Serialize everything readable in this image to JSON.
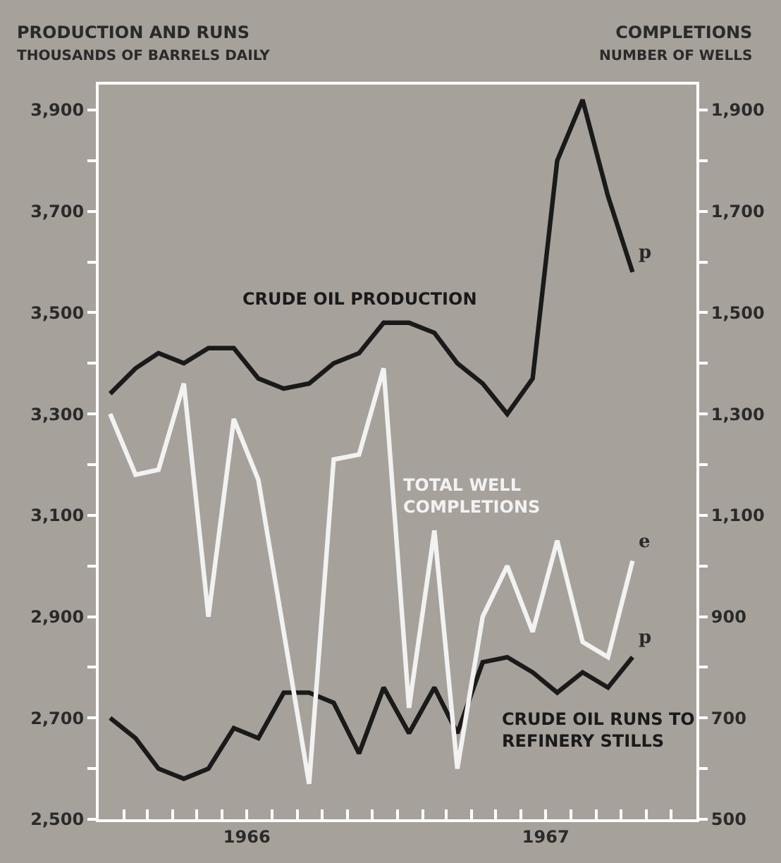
{
  "chart_data": {
    "type": "line",
    "ylabel": "PRODUCTION AND RUNS\nTHOUSANDS OF BARRELS DAILY",
    "y2label": "COMPLETIONS\nNUMBER OF WELLS",
    "x": [
      "1966-01-15",
      "1966-02-15",
      "1966-03-15",
      "1966-04-15",
      "1966-05-15",
      "1966-06-15",
      "1966-07-15",
      "1966-08-15",
      "1966-09-15",
      "1966-10-15",
      "1966-11-15",
      "1966-12-15",
      "1967-01-15",
      "1967-02-15",
      "1967-03-15",
      "1967-04-15",
      "1967-05-15",
      "1967-06-15",
      "1967-07-15",
      "1967-08-15",
      "1967-09-15",
      "1967-10-15"
    ],
    "series": [
      {
        "name": "CRUDE OIL PRODUCTION",
        "color": "#1a1a1a",
        "values": [
          3340,
          3390,
          3420,
          3400,
          3430,
          3430,
          3370,
          3350,
          3360,
          3400,
          3420,
          3480,
          3480,
          3460,
          3400,
          3360,
          3300,
          3370,
          3800,
          3920,
          3730,
          3580
        ]
      },
      {
        "name": "TOTAL WELL COMPLETIONS",
        "color": "#f2f2f2",
        "axis": "y2",
        "values": [
          1300,
          1180,
          1190,
          1360,
          900,
          1290,
          1170,
          870,
          570,
          1210,
          1220,
          1390,
          720,
          1070,
          600,
          900,
          1000,
          870,
          1050,
          850,
          820,
          1010
        ]
      },
      {
        "name": "CRUDE OIL RUNS TO REFINERY STILLS",
        "color": "#1a1a1a",
        "values": [
          2700,
          2660,
          2600,
          2580,
          2600,
          2680,
          2660,
          2750,
          2750,
          2730,
          2630,
          2760,
          2670,
          2760,
          2670,
          2810,
          2820,
          2790,
          2750,
          2790,
          2760,
          2820
        ]
      }
    ],
    "annotations": [
      {
        "text": "p",
        "x": "1967-10-15",
        "y": 3580
      },
      {
        "text": "e",
        "x": "1967-10-15",
        "y": 3010
      },
      {
        "text": "p",
        "x": "1967-10-15",
        "y": 2820
      }
    ],
    "xlim": [
      "1966-01-01",
      "1968-01-01"
    ],
    "xticks": [
      {
        "value": "1966-02-01",
        "label": null
      },
      {
        "value": "1966-03-01",
        "label": null
      },
      {
        "value": "1966-04-01",
        "label": null
      },
      {
        "value": "1966-05-01",
        "label": null
      },
      {
        "value": "1966-06-01",
        "label": null
      },
      {
        "value": "1966-07-01",
        "label": "1966"
      },
      {
        "value": "1966-08-01",
        "label": null
      },
      {
        "value": "1966-09-01",
        "label": null
      },
      {
        "value": "1966-10-01",
        "label": null
      },
      {
        "value": "1966-11-01",
        "label": null
      },
      {
        "value": "1966-12-01",
        "label": null
      },
      {
        "value": "1967-01-01",
        "label": null
      },
      {
        "value": "1967-02-01",
        "label": null
      },
      {
        "value": "1967-03-01",
        "label": null
      },
      {
        "value": "1967-04-01",
        "label": null
      },
      {
        "value": "1967-05-01",
        "label": null
      },
      {
        "value": "1967-06-01",
        "label": null
      },
      {
        "value": "1967-07-01",
        "label": "1967"
      },
      {
        "value": "1967-08-01",
        "label": null
      },
      {
        "value": "1967-09-01",
        "label": null
      },
      {
        "value": "1967-10-01",
        "label": null
      },
      {
        "value": "1967-11-01",
        "label": null
      },
      {
        "value": "1967-12-01",
        "label": null
      }
    ],
    "ylim": [
      2500,
      3950
    ],
    "yticks": [
      "2,500",
      {
        "value": 2600,
        "label": null
      },
      {
        "value": 2700,
        "label": "2,700"
      },
      {
        "value": 2800,
        "label": null
      },
      {
        "value": 2900,
        "label": "2,900"
      },
      {
        "value": 3000,
        "label": null
      },
      {
        "value": 3100,
        "label": "3,100"
      },
      {
        "value": 3200,
        "label": null
      },
      {
        "value": 3300,
        "label": "3,300"
      },
      {
        "value": 3400,
        "label": null
      },
      {
        "value": 3500,
        "label": "3,500"
      },
      {
        "value": 3600,
        "label": null
      },
      {
        "value": 3700,
        "label": "3,700"
      },
      {
        "value": 3800,
        "label": null
      },
      {
        "value": 3900,
        "label": "3,900"
      }
    ],
    "y2lim": [
      500,
      1950
    ],
    "y2ticks": [
      {
        "value": 500,
        "label": "500"
      },
      {
        "value": 600,
        "label": null
      },
      {
        "value": 700,
        "label": "700"
      },
      {
        "value": 800,
        "label": null
      },
      {
        "value": 900,
        "label": "900"
      },
      {
        "value": 1000,
        "label": null
      },
      {
        "value": 1100,
        "label": "1,100"
      },
      {
        "value": 1200,
        "label": null
      },
      {
        "value": 1300,
        "label": "1,300"
      },
      {
        "value": 1400,
        "label": null
      },
      {
        "value": 1500,
        "label": "1,500"
      },
      {
        "value": 1600,
        "label": null
      },
      {
        "value": 1700,
        "label": "1,700"
      },
      {
        "value": 1800,
        "label": null
      },
      {
        "value": 1900,
        "label": "1,900"
      }
    ],
    "grid": false,
    "legend": false,
    "marker": "none",
    "line_style": "solid"
  }
}
